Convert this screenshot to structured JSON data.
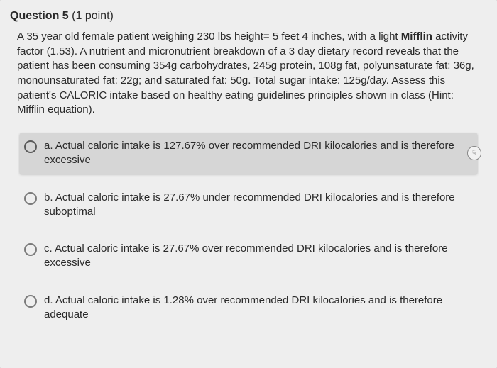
{
  "question": {
    "label": "Question 5",
    "points": "(1 point)",
    "body_parts": {
      "p1": "A 35 year old female patient weighing 230 lbs height= 5 feet 4 inches, with a light ",
      "bold1": "Mifflin",
      "p2": " activity factor (1.53). A nutrient and micronutrient breakdown of a 3 day dietary record reveals that the patient has been consuming 354g carbohydrates, 245g protein, 108g fat, polyunsaturate fat: 36g, monounsaturated fat: 22g; and saturated fat: 50g. Total sugar intake: 125g/day. Assess this patient's CALORIC intake based on healthy eating guidelines principles shown in class (Hint: Mifflin equation)."
    }
  },
  "options": [
    {
      "text": "a. Actual caloric intake is 127.67% over recommended DRI kilocalories and is therefore excessive",
      "highlighted": true
    },
    {
      "text": "b. Actual caloric intake is 27.67% under recommended DRI kilocalories and is therefore suboptimal",
      "highlighted": false
    },
    {
      "text": "c. Actual caloric intake is 27.67% over recommended DRI kilocalories and is therefore excessive",
      "highlighted": false
    },
    {
      "text": "d. Actual caloric intake is 1.28% over recommended DRI kilocalories and is therefore adequate",
      "highlighted": false
    }
  ],
  "cursor_glyph": "☟"
}
